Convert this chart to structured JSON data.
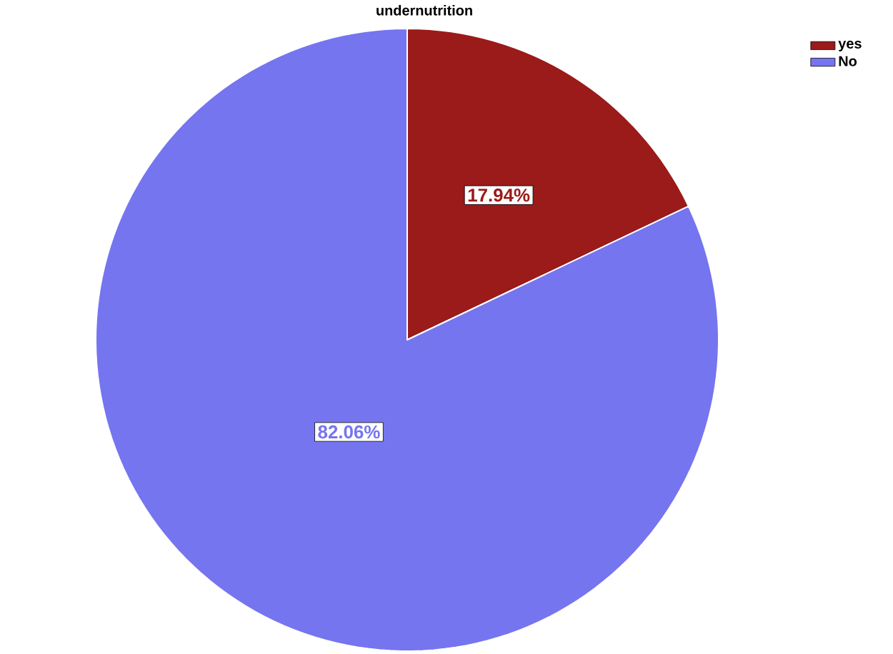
{
  "chart_data": {
    "type": "pie",
    "legend_title": "undernutrition",
    "categories": [
      "yes",
      "No"
    ],
    "values": [
      17.94,
      82.06
    ],
    "colors": [
      "#9b1a1a",
      "#7575f0"
    ],
    "value_labels": [
      "17.94%",
      "82.06%"
    ],
    "legend": "top right"
  }
}
